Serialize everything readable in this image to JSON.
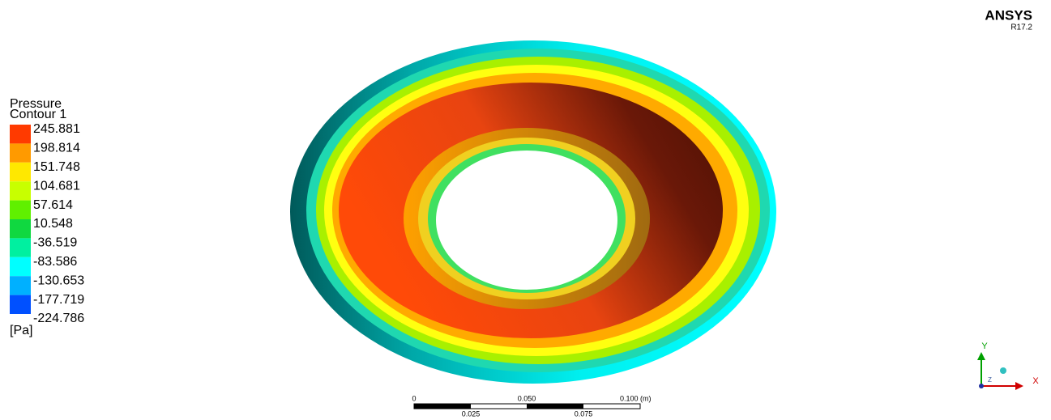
{
  "logo": {
    "name": "ANSYS",
    "version": "R17.2"
  },
  "legend": {
    "title": [
      "Pressure",
      "Contour 1"
    ],
    "labels": [
      "245.881",
      "198.814",
      "151.748",
      "104.681",
      "57.614",
      "10.548",
      "-36.519",
      "-83.586",
      "-130.653",
      "-177.719",
      "-224.786"
    ],
    "unit": "[Pa]"
  },
  "scale_bar": {
    "top_labels": [
      "0",
      "0.050",
      "0.100 (m)"
    ],
    "bottom_labels": [
      "0.025",
      "0.075"
    ]
  },
  "axes": {
    "y": "Y",
    "x": "X",
    "z": "Z"
  }
}
